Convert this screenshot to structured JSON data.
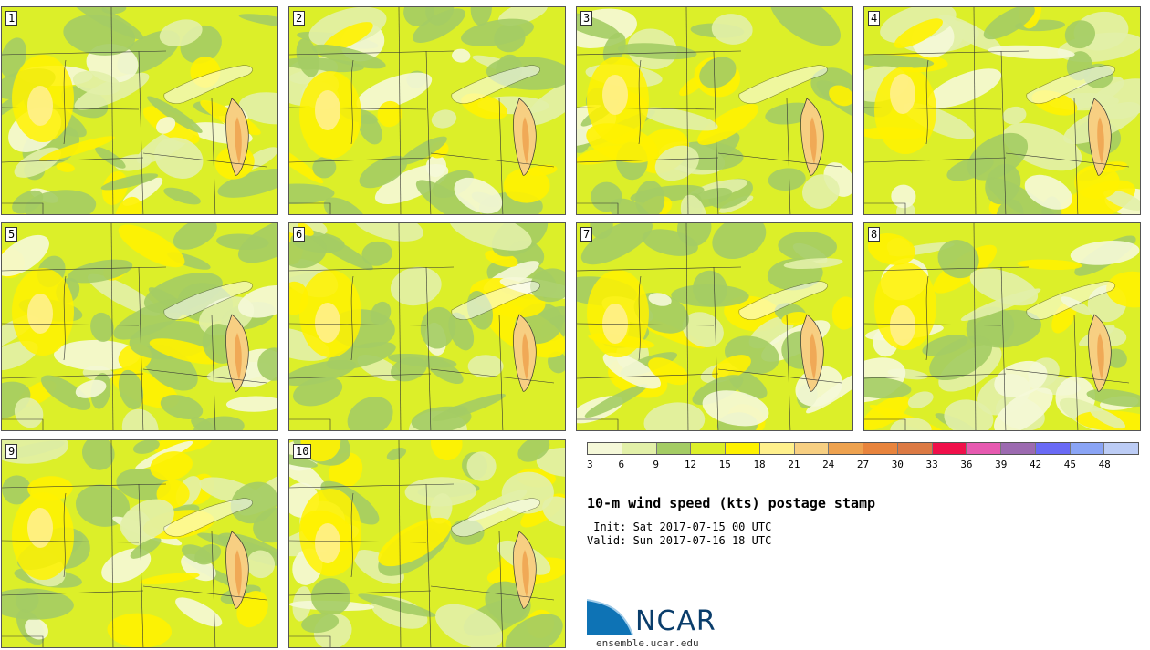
{
  "panels": [
    {
      "label": "1"
    },
    {
      "label": "2"
    },
    {
      "label": "3"
    },
    {
      "label": "4"
    },
    {
      "label": "5"
    },
    {
      "label": "6"
    },
    {
      "label": "7"
    },
    {
      "label": "8"
    },
    {
      "label": "9"
    },
    {
      "label": "10"
    }
  ],
  "colorbar": {
    "colors": [
      "#f5f8d8",
      "#e2f0a8",
      "#a4cc64",
      "#dcef29",
      "#fff200",
      "#fff08c",
      "#f7cf82",
      "#eea24f",
      "#e8843d",
      "#dc7a44",
      "#f0104a",
      "#e65ab0",
      "#9c6ab0",
      "#6a6af5",
      "#8aa4f5",
      "#bcccf5"
    ],
    "ticks": [
      "3",
      "6",
      "9",
      "12",
      "15",
      "18",
      "21",
      "24",
      "27",
      "30",
      "33",
      "36",
      "39",
      "42",
      "45",
      "48"
    ]
  },
  "title": "10-m wind speed (kts) postage stamp",
  "init": " Init: Sat 2017-07-15 00 UTC",
  "valid": "Valid: Sun 2017-07-16 18 UTC",
  "logo": {
    "name": "NCAR",
    "url": "ensemble.ucar.edu"
  }
}
